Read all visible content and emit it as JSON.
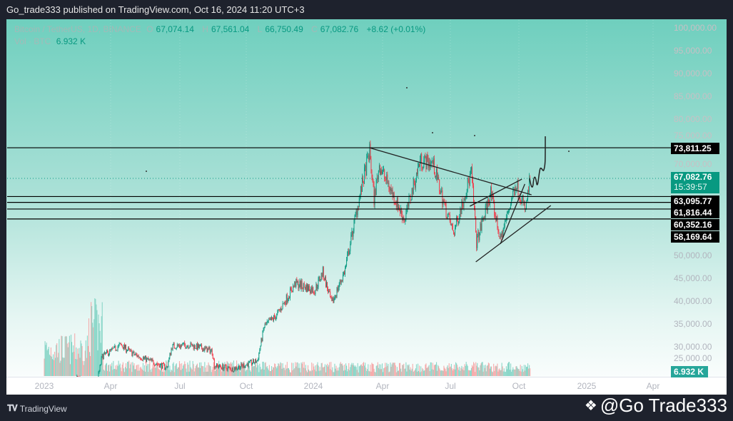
{
  "header": {
    "text": "Go_trade333 published on TradingView.com, Oct 16, 2024 11:20 UTC+3"
  },
  "legend": {
    "symbol": "Bitcoin / TetherUS, 1D, BINANCE",
    "o_label": "O",
    "open": "67,074.14",
    "h_label": "H",
    "high": "67,561.04",
    "l_label": "L",
    "low": "66,750.49",
    "c_label": "C",
    "close": "67,082.76",
    "change": "+8.62 (+0.01%)",
    "vol_label": "Vol · BTC",
    "vol_value": "6.932 K"
  },
  "price_axis": {
    "ticks": [
      "100,000.00",
      "95,000.00",
      "90,000.00",
      "85,000.00",
      "80,000.00",
      "75,000.00",
      "70,000.00",
      "50,000.00",
      "45,000.00",
      "40,000.00",
      "35,000.00",
      "30,000.00",
      "25,000.00"
    ],
    "current_price": "67,082.76",
    "countdown": "15:39:57",
    "levels": [
      "73,811.25",
      "63,095.77",
      "61,816.44",
      "60,352.16",
      "58,169.64"
    ],
    "volume_label": "6.932 K"
  },
  "time_axis": {
    "ticks": [
      "2023",
      "Apr",
      "Jul",
      "Oct",
      "2024",
      "Apr",
      "Jul",
      "Oct",
      "2025",
      "Apr"
    ]
  },
  "footer": {
    "brand": "TradingView",
    "watermark": "@Go Trade333"
  },
  "colors": {
    "up": "#089981",
    "down": "#f23645",
    "current_price_bg": "#089981",
    "level_label_bg": "#000000"
  },
  "chart_data": {
    "type": "candlestick",
    "symbol": "BTCUSDT",
    "interval": "1D",
    "ylim": [
      25000,
      100000
    ],
    "xlim": [
      "2022-12-20",
      "2025-05-10"
    ],
    "grid": true,
    "price_path": [
      [
        "2023-01-01",
        16500
      ],
      [
        "2023-02-15",
        23500
      ],
      [
        "2023-03-10",
        20000
      ],
      [
        "2023-03-20",
        28000
      ],
      [
        "2023-04-14",
        30500
      ],
      [
        "2023-05-01",
        28500
      ],
      [
        "2023-06-15",
        25500
      ],
      [
        "2023-06-22",
        30200
      ],
      [
        "2023-07-15",
        30500
      ],
      [
        "2023-08-15",
        29200
      ],
      [
        "2023-08-18",
        26000
      ],
      [
        "2023-09-11",
        25200
      ],
      [
        "2023-10-15",
        27000
      ],
      [
        "2023-10-24",
        34500
      ],
      [
        "2023-11-10",
        37000
      ],
      [
        "2023-12-05",
        44000
      ],
      [
        "2023-12-31",
        42500
      ],
      [
        "2024-01-11",
        46500
      ],
      [
        "2024-01-23",
        39500
      ],
      [
        "2024-02-10",
        47000
      ],
      [
        "2024-02-28",
        62000
      ],
      [
        "2024-03-14",
        73000
      ],
      [
        "2024-03-20",
        62500
      ],
      [
        "2024-03-27",
        70000
      ],
      [
        "2024-04-13",
        64000
      ],
      [
        "2024-04-30",
        58000
      ],
      [
        "2024-05-21",
        71000
      ],
      [
        "2024-06-07",
        70500
      ],
      [
        "2024-06-24",
        60500
      ],
      [
        "2024-07-05",
        55000
      ],
      [
        "2024-07-29",
        68500
      ],
      [
        "2024-08-05",
        53000
      ],
      [
        "2024-08-24",
        64000
      ],
      [
        "2024-09-06",
        53500
      ],
      [
        "2024-09-27",
        66000
      ],
      [
        "2024-10-10",
        60000
      ],
      [
        "2024-10-16",
        67082.76
      ]
    ],
    "last_volume": "6.932 K",
    "horizontal_levels": [
      73811.25,
      63095.77,
      61816.44,
      60352.16,
      58169.64
    ],
    "trendlines": [
      {
        "from": [
          "2024-03-14",
          73811
        ],
        "to": [
          "2024-10-18",
          63480
        ]
      },
      {
        "from": [
          "2024-07-27",
          60970
        ],
        "to": [
          "2024-10-05",
          66920
        ]
      },
      {
        "from": [
          "2024-08-04",
          48750
        ],
        "to": [
          "2024-11-13",
          61130
        ]
      },
      {
        "from": [
          "2024-09-06",
          52680
        ],
        "to": [
          "2024-10-09",
          65850
        ]
      }
    ]
  }
}
